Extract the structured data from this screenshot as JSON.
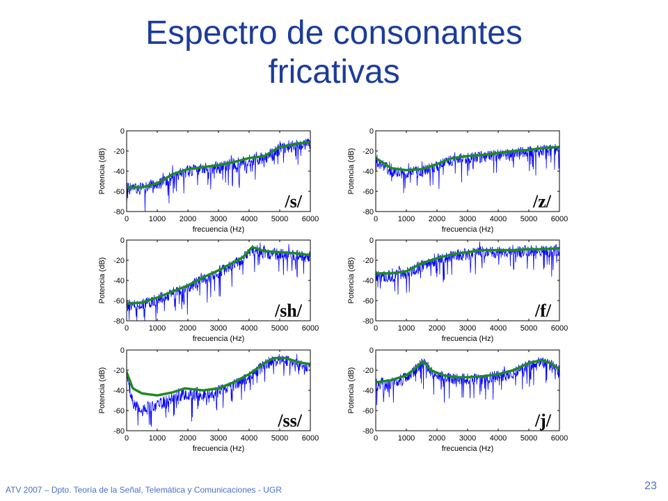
{
  "slide": {
    "title_line1": "Espectro de consonantes",
    "title_line2": "fricativas",
    "footer": "ATV 2007 – Dpto. Teoría de la Señal, Telemática y Comunicaciones - UGR",
    "page_number": "23"
  },
  "colors": {
    "title": "#1b3c9a",
    "spectrum": "#0000ff",
    "envelope": "#1e8a1e",
    "footer": "#4a6fc7"
  },
  "chart_data": [
    {
      "type": "line",
      "annotation": "/s/",
      "xlabel": "frecuencia (Hz)",
      "ylabel": "Potencia (dB)",
      "xlim": [
        0,
        6000
      ],
      "ylim": [
        -80,
        0
      ],
      "xticks": [
        0,
        1000,
        2000,
        3000,
        4000,
        5000,
        6000
      ],
      "yticks": [
        0,
        -20,
        -40,
        -60,
        -80
      ],
      "grid": false,
      "series": [
        {
          "role": "envelope",
          "x": [
            0,
            500,
            1000,
            1500,
            2000,
            2500,
            3000,
            3500,
            4000,
            4500,
            5000,
            5500,
            6000
          ],
          "values": [
            -56,
            -56,
            -52,
            -43,
            -38,
            -36,
            -34,
            -31,
            -27,
            -25,
            -16,
            -13,
            -11
          ]
        },
        {
          "role": "spectrum",
          "x": [
            0,
            500,
            1000,
            1500,
            2000,
            2500,
            3000,
            3500,
            4000,
            4500,
            5000,
            5500,
            6000
          ],
          "values": [
            -57,
            -57,
            -53,
            -45,
            -40,
            -38,
            -36,
            -33,
            -29,
            -27,
            -18,
            -15,
            -13
          ]
        }
      ]
    },
    {
      "type": "line",
      "annotation": "/z/",
      "xlabel": "frecuencia (Hz)",
      "ylabel": "Potencia (dB)",
      "xlim": [
        0,
        6000
      ],
      "ylim": [
        -80,
        0
      ],
      "xticks": [
        0,
        1000,
        2000,
        3000,
        4000,
        5000,
        6000
      ],
      "yticks": [
        0,
        -20,
        -40,
        -60,
        -80
      ],
      "grid": false,
      "series": [
        {
          "role": "envelope",
          "x": [
            0,
            500,
            1000,
            1500,
            2000,
            2500,
            3000,
            3500,
            4000,
            4500,
            5000,
            5500,
            6000
          ],
          "values": [
            -27,
            -37,
            -39,
            -38,
            -33,
            -27,
            -25,
            -24,
            -22,
            -20,
            -19,
            -17,
            -16
          ]
        },
        {
          "role": "spectrum",
          "x": [
            0,
            500,
            1000,
            1500,
            2000,
            2500,
            3000,
            3500,
            4000,
            4500,
            5000,
            5500,
            6000
          ],
          "values": [
            -29,
            -40,
            -42,
            -40,
            -35,
            -29,
            -27,
            -26,
            -24,
            -22,
            -21,
            -19,
            -18
          ]
        }
      ]
    },
    {
      "type": "line",
      "annotation": "/sh/",
      "xlabel": "frecuencia (Hz)",
      "ylabel": "Potencia (dB)",
      "xlim": [
        0,
        6000
      ],
      "ylim": [
        -80,
        0
      ],
      "xticks": [
        0,
        1000,
        2000,
        3000,
        4000,
        5000,
        6000
      ],
      "yticks": [
        0,
        -20,
        -40,
        -60,
        -80
      ],
      "grid": false,
      "series": [
        {
          "role": "envelope",
          "x": [
            0,
            500,
            1000,
            1500,
            2000,
            2500,
            3000,
            3500,
            3800,
            4100,
            4500,
            5000,
            5500,
            6000
          ],
          "values": [
            -63,
            -62,
            -57,
            -51,
            -45,
            -37,
            -30,
            -22,
            -17,
            -7,
            -11,
            -12,
            -13,
            -15
          ]
        },
        {
          "role": "spectrum",
          "x": [
            0,
            500,
            1000,
            1500,
            2000,
            2500,
            3000,
            3500,
            3800,
            4100,
            4500,
            5000,
            5500,
            6000
          ],
          "values": [
            -65,
            -64,
            -59,
            -53,
            -47,
            -39,
            -32,
            -24,
            -19,
            -9,
            -13,
            -14,
            -15,
            -17
          ]
        }
      ]
    },
    {
      "type": "line",
      "annotation": "/f/",
      "xlabel": "frecuencia (Hz)",
      "ylabel": "Potencia (dB)",
      "xlim": [
        0,
        6000
      ],
      "ylim": [
        -80,
        0
      ],
      "xticks": [
        0,
        1000,
        2000,
        3000,
        4000,
        5000,
        6000
      ],
      "yticks": [
        0,
        -20,
        -40,
        -60,
        -80
      ],
      "grid": false,
      "series": [
        {
          "role": "envelope",
          "x": [
            0,
            500,
            1000,
            1500,
            2000,
            2500,
            3000,
            3500,
            4000,
            4500,
            5000,
            5500,
            6000
          ],
          "values": [
            -33,
            -33,
            -31,
            -23,
            -18,
            -14,
            -12,
            -10,
            -10,
            -10,
            -9,
            -9,
            -8
          ]
        },
        {
          "role": "spectrum",
          "x": [
            0,
            500,
            1000,
            1500,
            2000,
            2500,
            3000,
            3500,
            4000,
            4500,
            5000,
            5500,
            6000
          ],
          "values": [
            -35,
            -36,
            -33,
            -25,
            -20,
            -16,
            -14,
            -12,
            -12,
            -12,
            -11,
            -11,
            -10
          ]
        }
      ]
    },
    {
      "type": "line",
      "annotation": "/ss/",
      "xlabel": "frecuencia (Hz)",
      "ylabel": "Potencia (dB)",
      "xlim": [
        0,
        6000
      ],
      "ylim": [
        -80,
        0
      ],
      "xticks": [
        0,
        1000,
        2000,
        3000,
        4000,
        5000,
        6000
      ],
      "yticks": [
        0,
        -20,
        -40,
        -60,
        -80
      ],
      "grid": false,
      "series": [
        {
          "role": "envelope",
          "x": [
            0,
            200,
            500,
            1000,
            1500,
            1900,
            2500,
            3000,
            3500,
            4000,
            4500,
            4800,
            5200,
            5600,
            6000
          ],
          "values": [
            -22,
            -38,
            -43,
            -45,
            -42,
            -38,
            -40,
            -38,
            -32,
            -24,
            -13,
            -8,
            -8,
            -12,
            -14
          ]
        },
        {
          "role": "spectrum",
          "x": [
            0,
            200,
            500,
            1000,
            1500,
            1900,
            2500,
            3000,
            3500,
            4000,
            4500,
            4800,
            5200,
            5600,
            6000
          ],
          "values": [
            -24,
            -52,
            -60,
            -55,
            -48,
            -44,
            -45,
            -41,
            -35,
            -27,
            -15,
            -10,
            -10,
            -14,
            -16
          ]
        }
      ]
    },
    {
      "type": "line",
      "annotation": "/j/",
      "xlabel": "frecuencia (Hz)",
      "ylabel": "Potencia (dB)",
      "xlim": [
        0,
        6000
      ],
      "ylim": [
        -80,
        0
      ],
      "xticks": [
        0,
        1000,
        2000,
        3000,
        4000,
        5000,
        6000
      ],
      "yticks": [
        0,
        -20,
        -40,
        -60,
        -80
      ],
      "grid": false,
      "series": [
        {
          "role": "envelope",
          "x": [
            0,
            500,
            1000,
            1300,
            1550,
            1800,
            2200,
            2600,
            3000,
            3500,
            4000,
            4500,
            5000,
            5400,
            5700,
            6000
          ],
          "values": [
            -32,
            -30,
            -25,
            -18,
            -11,
            -20,
            -25,
            -27,
            -27,
            -26,
            -24,
            -20,
            -13,
            -10,
            -13,
            -19
          ]
        },
        {
          "role": "spectrum",
          "x": [
            0,
            500,
            1000,
            1300,
            1550,
            1800,
            2200,
            2600,
            3000,
            3500,
            4000,
            4500,
            5000,
            5400,
            5700,
            6000
          ],
          "values": [
            -34,
            -33,
            -28,
            -20,
            -13,
            -22,
            -27,
            -29,
            -29,
            -28,
            -26,
            -22,
            -15,
            -12,
            -15,
            -21
          ]
        }
      ]
    }
  ]
}
